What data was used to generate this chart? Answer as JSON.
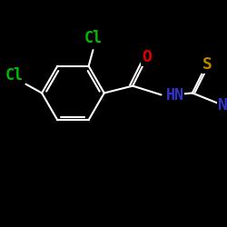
{
  "bg_color": "#000000",
  "bond_color": "#ffffff",
  "colors": {
    "Cl": "#00bb00",
    "O": "#dd0000",
    "S": "#bb8800",
    "N": "#3333cc",
    "C": "#ffffff"
  },
  "lw": 1.5,
  "fs": 11,
  "figsize": [
    2.5,
    2.5
  ],
  "dpi": 100,
  "xlim": [
    0,
    250
  ],
  "ylim": [
    0,
    250
  ]
}
